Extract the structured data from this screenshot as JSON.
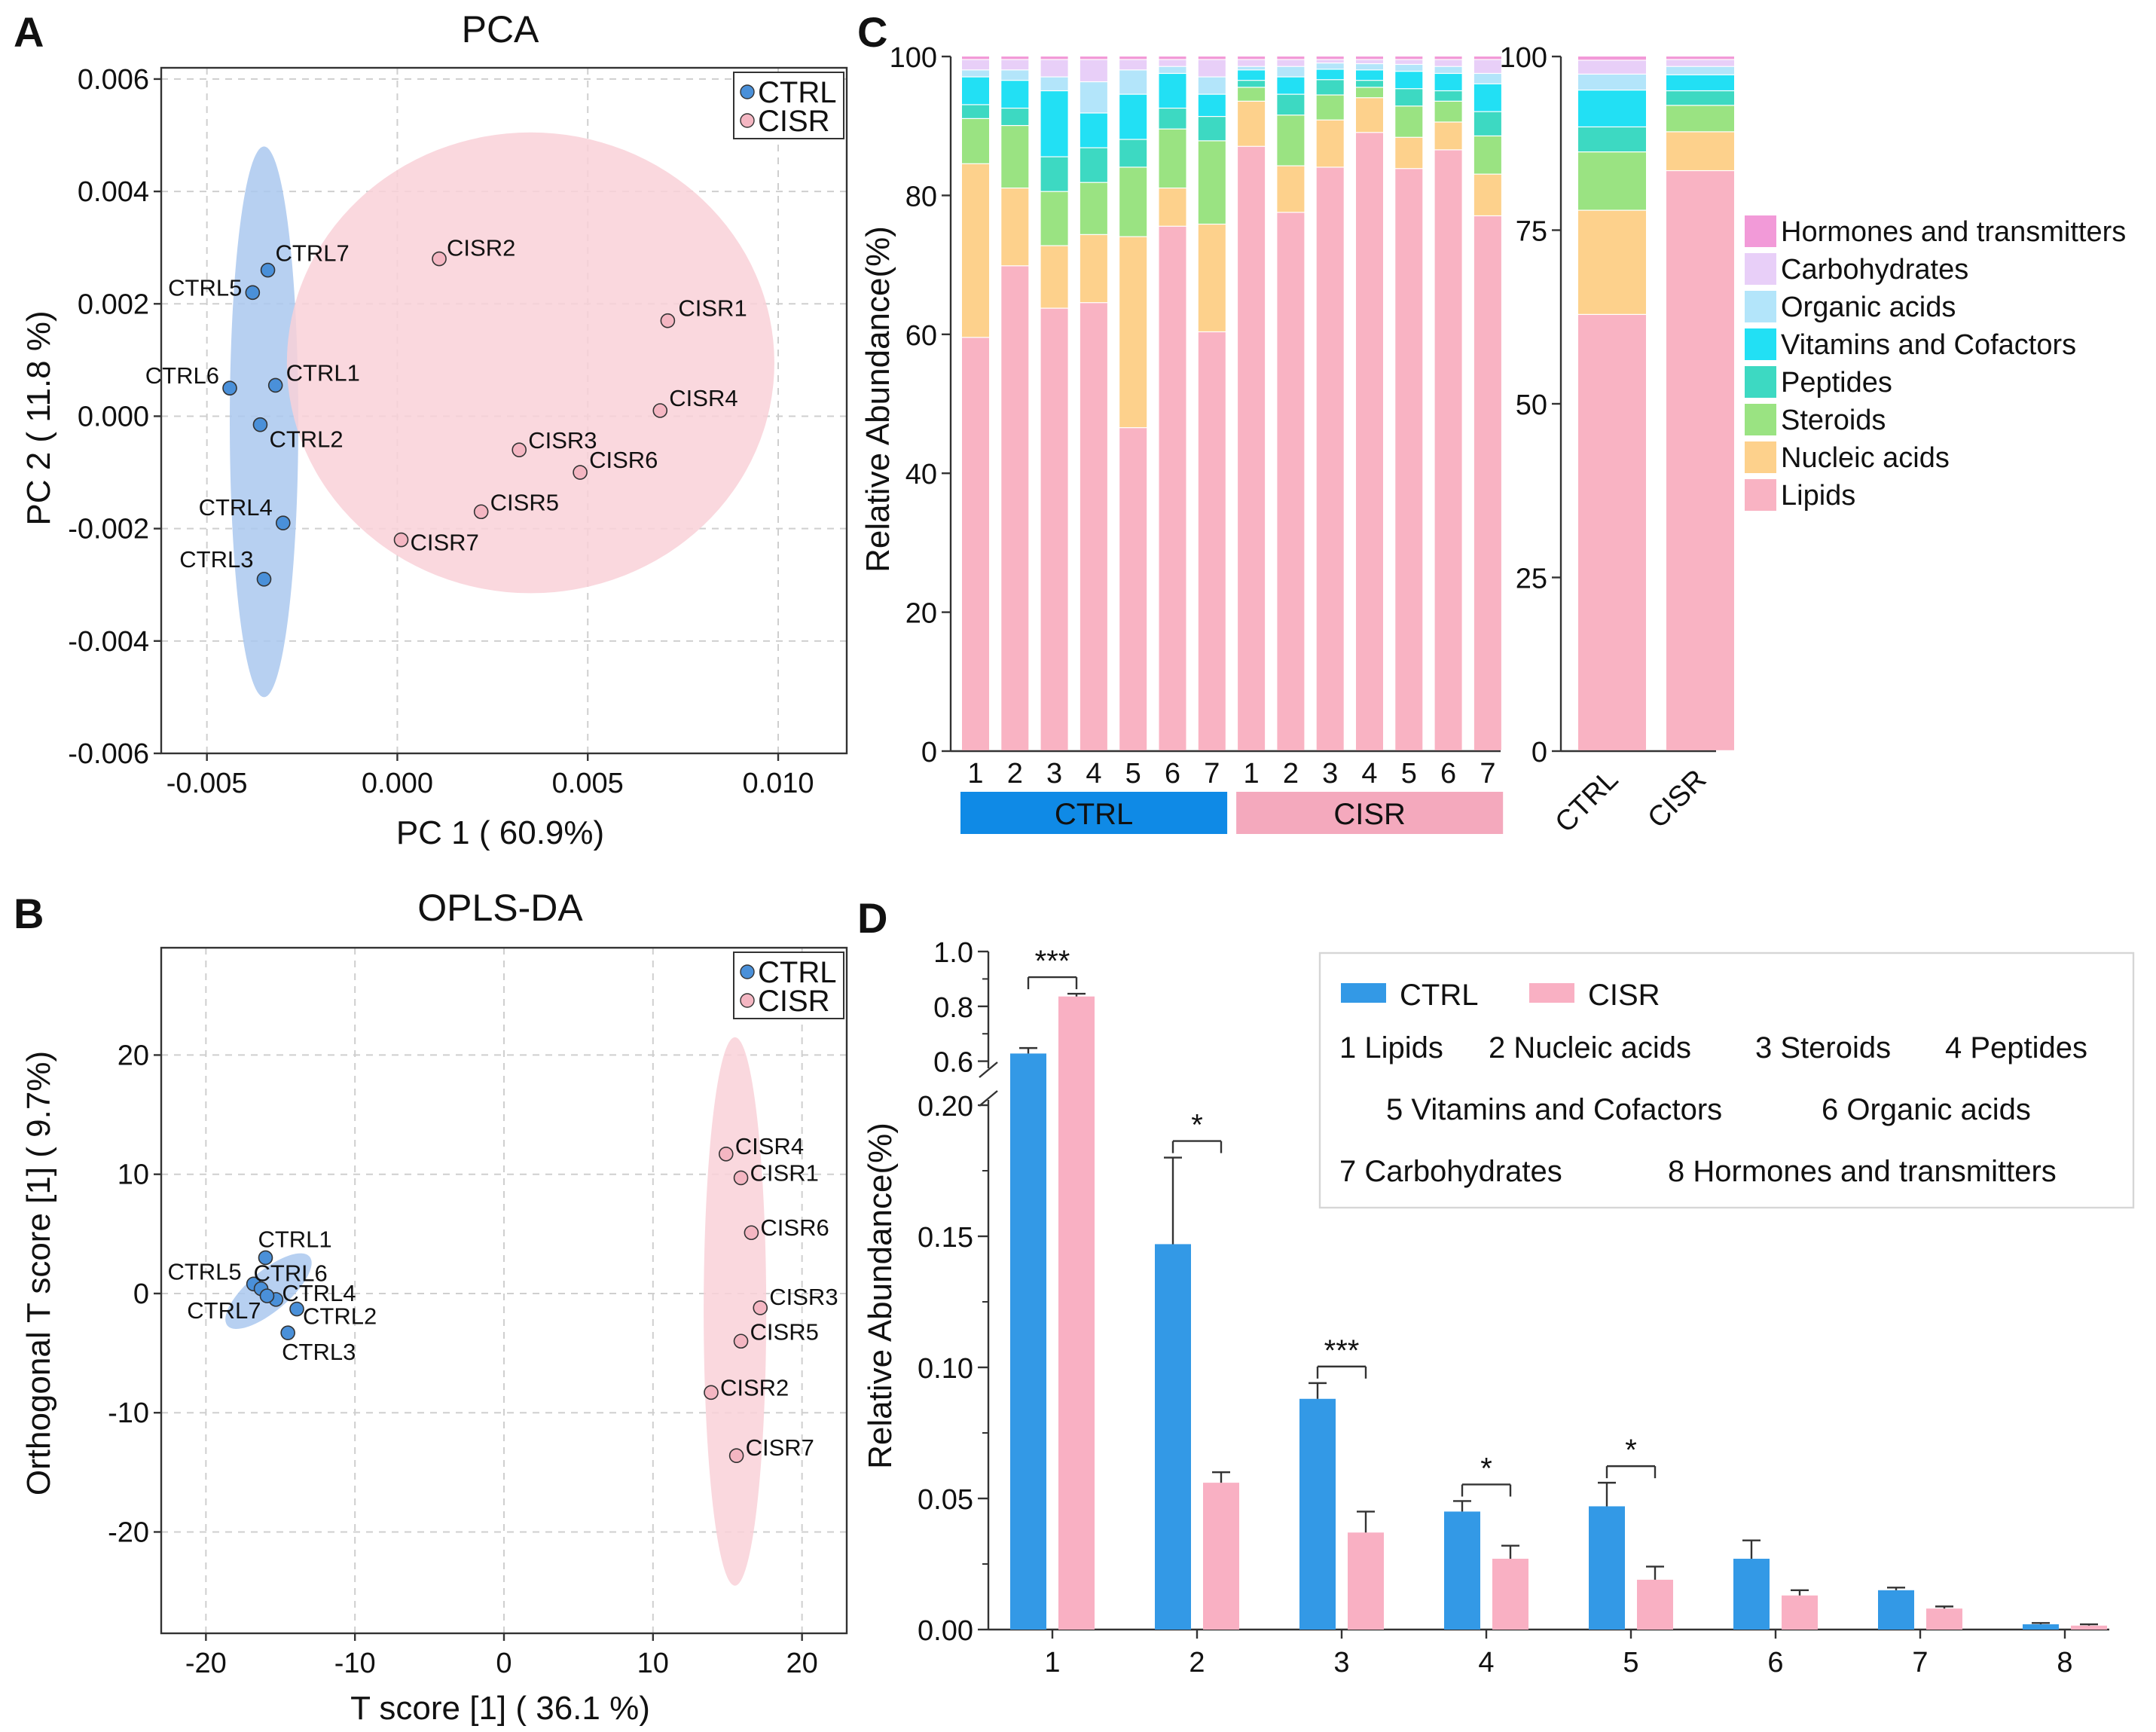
{
  "chart_data": [
    {
      "panel": "A",
      "type": "scatter",
      "title": "PCA",
      "xlabel": "PC 1 ( 60.9%)",
      "ylabel": "PC 2 ( 11.8 %)",
      "xlim": [
        -0.0062,
        0.0118
      ],
      "ylim": [
        -0.006,
        0.0062
      ],
      "xticks": [
        -0.005,
        0.0,
        0.005,
        0.01
      ],
      "xtick_labels": [
        "-0.005",
        "0.000",
        "0.005",
        "0.010"
      ],
      "yticks": [
        -0.006,
        -0.004,
        -0.002,
        0.0,
        0.002,
        0.004,
        0.006
      ],
      "ytick_labels": [
        "-0.006",
        "-0.004",
        "-0.002",
        "0.000",
        "0.002",
        "0.004",
        "0.006"
      ],
      "legend": [
        "CTRL",
        "CISR"
      ],
      "legend_position": "top-right",
      "grid": true,
      "series": [
        {
          "name": "CTRL",
          "color": "#4a90d9",
          "ellipse_color": "#aac8ee",
          "ellipse": {
            "cx": -0.0035,
            "cy": -0.0001,
            "rx": 0.0009,
            "ry": 0.0049
          },
          "points": [
            {
              "label": "CTRL1",
              "x": -0.0032,
              "y": 0.00055
            },
            {
              "label": "CTRL2",
              "x": -0.0036,
              "y": -0.00015
            },
            {
              "label": "CTRL3",
              "x": -0.0035,
              "y": -0.0029
            },
            {
              "label": "CTRL4",
              "x": -0.003,
              "y": -0.0019
            },
            {
              "label": "CTRL5",
              "x": -0.0038,
              "y": 0.0022
            },
            {
              "label": "CTRL6",
              "x": -0.0044,
              "y": 0.0005
            },
            {
              "label": "CTRL7",
              "x": -0.0034,
              "y": 0.0026
            }
          ]
        },
        {
          "name": "CISR",
          "color": "#f4b6c2",
          "ellipse_color": "#f9d1d8",
          "ellipse": {
            "cx": 0.0035,
            "cy": 0.00095,
            "rx": 0.0064,
            "ry": 0.0041
          },
          "points": [
            {
              "label": "CISR1",
              "x": 0.0071,
              "y": 0.0017
            },
            {
              "label": "CISR2",
              "x": 0.0011,
              "y": 0.0028
            },
            {
              "label": "CISR3",
              "x": 0.0032,
              "y": -0.0006
            },
            {
              "label": "CISR4",
              "x": 0.0069,
              "y": 0.0001
            },
            {
              "label": "CISR5",
              "x": 0.0022,
              "y": -0.0017
            },
            {
              "label": "CISR6",
              "x": 0.0048,
              "y": -0.001
            },
            {
              "label": "CISR7",
              "x": 0.0001,
              "y": -0.0022
            }
          ]
        }
      ]
    },
    {
      "panel": "B",
      "type": "scatter",
      "title": "OPLS-DA",
      "xlabel": "T score [1] ( 36.1 %)",
      "ylabel": "Orthogonal T score [1] ( 9.7%)",
      "xlim": [
        -23,
        23
      ],
      "ylim": [
        -28.5,
        29
      ],
      "xticks": [
        -20,
        -10,
        0,
        10,
        20
      ],
      "xtick_labels": [
        "-20",
        "-10",
        "0",
        "10",
        "20"
      ],
      "yticks": [
        -20,
        -10,
        0,
        10,
        20
      ],
      "ytick_labels": [
        "-20",
        "-10",
        "0",
        "10",
        "20"
      ],
      "legend": [
        "CTRL",
        "CISR"
      ],
      "legend_position": "top-right",
      "grid": true,
      "series": [
        {
          "name": "CTRL",
          "color": "#4a90d9",
          "ellipse_color": "#aac8ee",
          "ellipse": {
            "cx": -15.8,
            "cy": 0.2,
            "rx": 3.6,
            "ry": 1.7,
            "angle": -40
          },
          "points": [
            {
              "label": "CTRL1",
              "x": -16.0,
              "y": 3.0
            },
            {
              "label": "CTRL2",
              "x": -13.9,
              "y": -1.3
            },
            {
              "label": "CTRL3",
              "x": -14.5,
              "y": -3.3
            },
            {
              "label": "CTRL4",
              "x": -15.3,
              "y": -0.5
            },
            {
              "label": "CTRL5",
              "x": -16.8,
              "y": 0.8
            },
            {
              "label": "CTRL6",
              "x": -16.3,
              "y": 0.4
            },
            {
              "label": "CTRL7",
              "x": -15.9,
              "y": -0.2
            }
          ]
        },
        {
          "name": "CISR",
          "color": "#f4b6c2",
          "ellipse_color": "#f9d1d8",
          "ellipse": {
            "cx": 15.5,
            "cy": -1.5,
            "rx": 2.1,
            "ry": 23.0
          },
          "points": [
            {
              "label": "CISR1",
              "x": 15.9,
              "y": 9.7
            },
            {
              "label": "CISR2",
              "x": 13.9,
              "y": -8.3
            },
            {
              "label": "CISR3",
              "x": 17.2,
              "y": -1.2
            },
            {
              "label": "CISR4",
              "x": 14.9,
              "y": 11.7
            },
            {
              "label": "CISR5",
              "x": 15.9,
              "y": -4.0
            },
            {
              "label": "CISR6",
              "x": 16.6,
              "y": 5.1
            },
            {
              "label": "CISR7",
              "x": 15.6,
              "y": -13.6
            }
          ]
        }
      ]
    },
    {
      "panel": "C",
      "type": "bar",
      "stacked": true,
      "ylabel": "Relative Abundance(%)",
      "ylim": [
        0,
        100
      ],
      "yticks": [
        0,
        20,
        40,
        60,
        80,
        100
      ],
      "ytick_labels": [
        "0",
        "20",
        "40",
        "60",
        "80",
        "100"
      ],
      "right_yticks": [
        0,
        25,
        50,
        75,
        100
      ],
      "right_ytick_labels": [
        "0",
        "25",
        "50",
        "75",
        "100"
      ],
      "categories": [
        "1",
        "2",
        "3",
        "4",
        "5",
        "6",
        "7",
        "1",
        "2",
        "3",
        "4",
        "5",
        "6",
        "7"
      ],
      "group_labels": [
        {
          "label": "CTRL",
          "color": "#0f8ae6"
        },
        {
          "label": "CISR",
          "color": "#f4a9bd"
        }
      ],
      "summary_categories": [
        "CTRL",
        "CISR"
      ],
      "legend": [
        {
          "label": "Hormones and transmitters",
          "color": "#f29ad8"
        },
        {
          "label": "Carbohydrates",
          "color": "#e8cff8"
        },
        {
          "label": "Organic acids",
          "color": "#b3e5fa"
        },
        {
          "label": "Vitamins and Cofactors",
          "color": "#22e0f4"
        },
        {
          "label": "Peptides",
          "color": "#3dd9c2"
        },
        {
          "label": "Steroids",
          "color": "#9ae382"
        },
        {
          "label": "Nucleic acids",
          "color": "#fdd18c"
        },
        {
          "label": "Lipids",
          "color": "#f9b3c3"
        }
      ],
      "series_order": [
        "Lipids",
        "Nucleic acids",
        "Steroids",
        "Peptides",
        "Vitamins and Cofactors",
        "Organic acids",
        "Carbohydrates",
        "Hormones and transmitters"
      ],
      "samples": [
        [
          59.5,
          25.0,
          6.5,
          2.0,
          4.0,
          1.0,
          1.5,
          0.5
        ],
        [
          69.8,
          11.2,
          9.0,
          2.5,
          4.0,
          1.5,
          1.5,
          0.5
        ],
        [
          63.7,
          9.0,
          7.8,
          5.0,
          9.5,
          2.0,
          2.5,
          0.5
        ],
        [
          64.5,
          9.8,
          7.5,
          5.0,
          5.0,
          4.5,
          3.2,
          0.5
        ],
        [
          46.5,
          27.5,
          10.0,
          4.0,
          6.5,
          3.5,
          1.5,
          0.5
        ],
        [
          75.5,
          5.5,
          8.5,
          3.0,
          5.0,
          1.0,
          1.0,
          0.5
        ],
        [
          60.3,
          15.5,
          12.0,
          3.5,
          3.2,
          2.5,
          2.5,
          0.5
        ],
        [
          87.0,
          6.5,
          2.0,
          1.0,
          1.5,
          0.5,
          1.0,
          0.5
        ],
        [
          77.5,
          6.7,
          7.3,
          3.0,
          2.5,
          1.5,
          1.0,
          0.5
        ],
        [
          84.0,
          6.8,
          3.6,
          2.2,
          1.5,
          0.9,
          0.5,
          0.5
        ],
        [
          89.0,
          5.0,
          1.5,
          1.0,
          1.5,
          0.9,
          0.6,
          0.5
        ],
        [
          83.8,
          4.5,
          4.5,
          2.5,
          2.5,
          1.0,
          0.7,
          0.5
        ],
        [
          86.5,
          4.0,
          3.0,
          1.5,
          2.5,
          1.0,
          1.0,
          0.5
        ],
        [
          77.0,
          6.0,
          5.5,
          3.5,
          4.0,
          1.5,
          2.0,
          0.5
        ]
      ],
      "summary": [
        [
          62.8,
          15.0,
          8.4,
          3.6,
          5.3,
          2.3,
          2.0,
          0.6
        ],
        [
          83.5,
          5.6,
          3.8,
          2.1,
          2.3,
          1.2,
          1.0,
          0.5
        ]
      ]
    },
    {
      "panel": "D",
      "type": "bar",
      "ylabel": "Relative Abundance(%)",
      "categories": [
        "1",
        "2",
        "3",
        "4",
        "5",
        "6",
        "7",
        "8"
      ],
      "axis_break": {
        "lower": [
          0,
          0.2
        ],
        "upper": [
          0.5,
          1.0
        ]
      },
      "yticks_lower": [
        0.0,
        0.05,
        0.1,
        0.15,
        0.2
      ],
      "ytick_labels_lower": [
        "0.00",
        "0.05",
        "0.10",
        "0.15",
        "0.20"
      ],
      "yticks_upper": [
        0.6,
        0.8,
        1.0
      ],
      "ytick_labels_upper": [
        "0.6",
        "0.8",
        "1.0"
      ],
      "series": [
        {
          "name": "CTRL",
          "color": "#3399e6",
          "values": [
            0.628,
            0.147,
            0.088,
            0.045,
            0.047,
            0.027,
            0.015,
            0.002
          ],
          "errors": [
            0.02,
            0.033,
            0.006,
            0.004,
            0.009,
            0.007,
            0.001,
            0.0005
          ]
        },
        {
          "name": "CISR",
          "color": "#f9b0c3",
          "values": [
            0.836,
            0.056,
            0.037,
            0.027,
            0.019,
            0.013,
            0.008,
            0.0015
          ],
          "errors": [
            0.01,
            0.004,
            0.008,
            0.005,
            0.005,
            0.002,
            0.0008,
            0.0005
          ]
        }
      ],
      "significance": [
        {
          "category": "1",
          "label": "***"
        },
        {
          "category": "2",
          "label": "*"
        },
        {
          "category": "3",
          "label": "***"
        },
        {
          "category": "4",
          "label": "*"
        },
        {
          "category": "5",
          "label": "*"
        }
      ],
      "legend": {
        "series_labels": [
          "CTRL",
          "CISR"
        ],
        "key_lines": [
          [
            "1 Lipids",
            "2 Nucleic acids",
            "3 Steroids",
            "4 Peptides"
          ],
          [
            "5 Vitamins and Cofactors",
            "6 Organic acids"
          ],
          [
            "7 Carbohydrates",
            "8 Hormones and transmitters"
          ]
        ]
      }
    }
  ]
}
